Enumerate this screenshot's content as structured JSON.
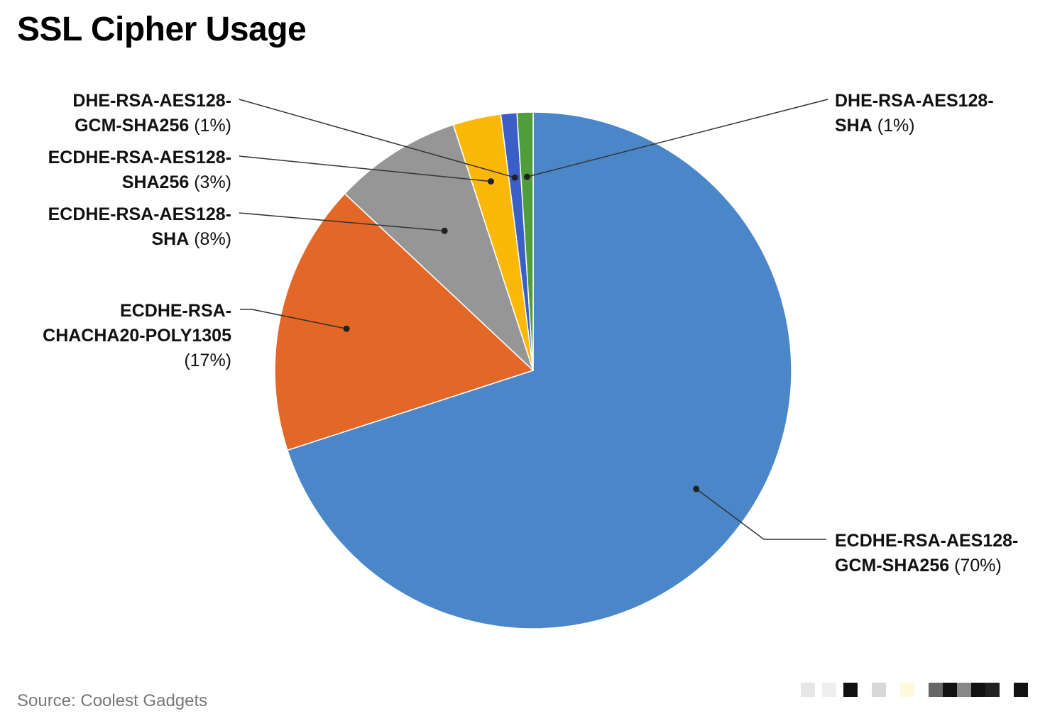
{
  "title": "SSL Cipher Usage",
  "source": "Source: Coolest Gadgets",
  "chart_data": {
    "type": "pie",
    "title": "SSL Cipher Usage",
    "slices": [
      {
        "label_lines": [
          "ECDHE-RSA-AES128-",
          "GCM-SHA256"
        ],
        "pct_text": "(70%)",
        "value": 70,
        "color": "#4a86c8"
      },
      {
        "label_lines": [
          "ECDHE-RSA-",
          "CHACHA20-POLY1305"
        ],
        "pct_text": "(17%)",
        "value": 17,
        "color": "#e36827"
      },
      {
        "label_lines": [
          "ECDHE-RSA-AES128-",
          "SHA"
        ],
        "pct_text": "(8%)",
        "value": 8,
        "color": "#969696"
      },
      {
        "label_lines": [
          "ECDHE-RSA-AES128-",
          "SHA256"
        ],
        "pct_text": "(3%)",
        "value": 3,
        "color": "#fbb808"
      },
      {
        "label_lines": [
          "DHE-RSA-AES128-",
          "GCM-SHA256"
        ],
        "pct_text": "(1%)",
        "value": 1,
        "color": "#3a5fc6"
      },
      {
        "label_lines": [
          "DHE-RSA-AES128-",
          "SHA"
        ],
        "pct_text": "(1%)",
        "value": 1,
        "color": "#4f9e3b"
      }
    ]
  }
}
